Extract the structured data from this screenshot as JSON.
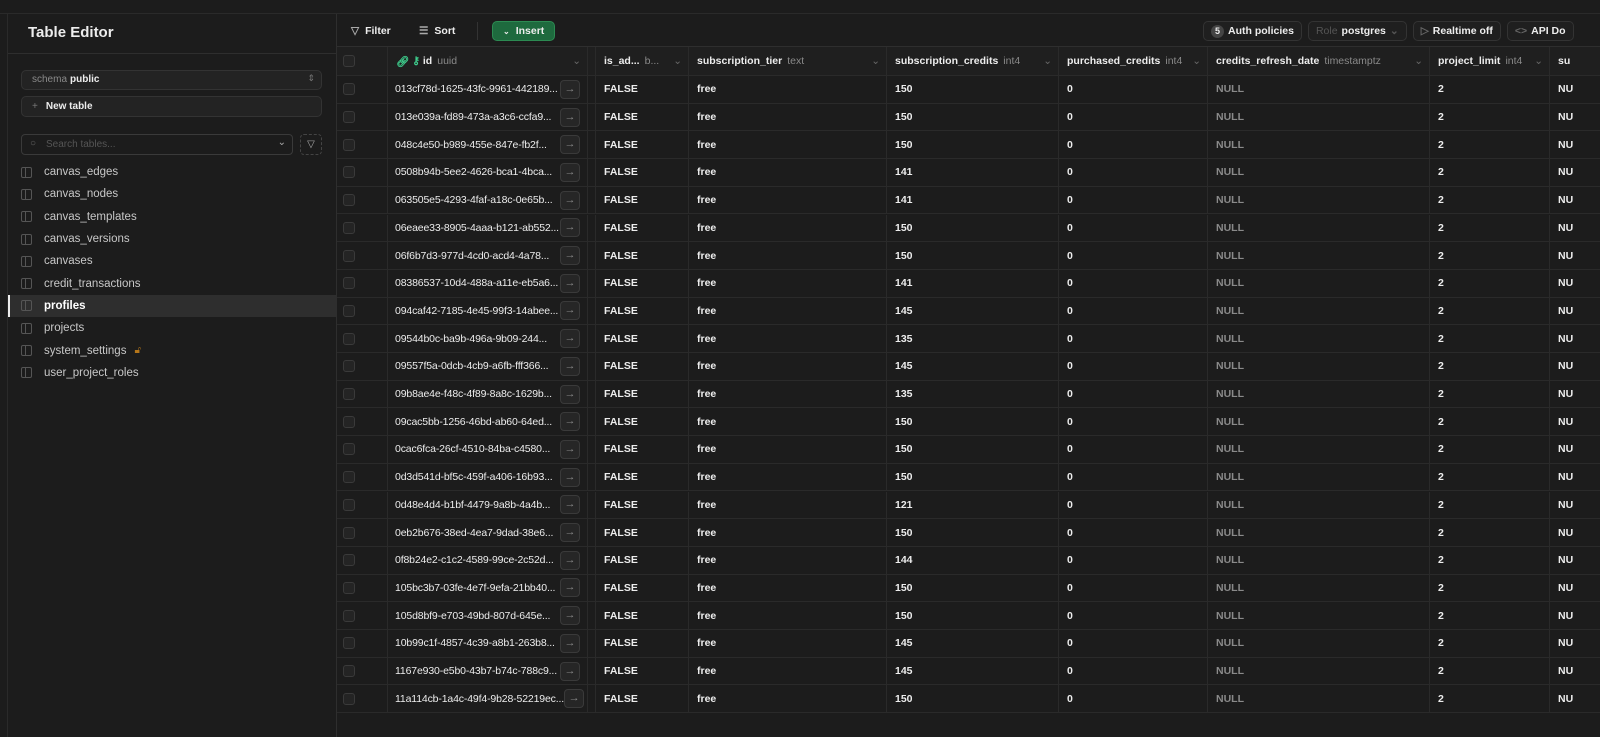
{
  "sidebar": {
    "title": "Table Editor",
    "schema_label": "schema",
    "schema_value": "public",
    "new_table": "New table",
    "search_placeholder": "Search tables...",
    "tables": [
      {
        "name": "canvas_edges"
      },
      {
        "name": "canvas_nodes"
      },
      {
        "name": "canvas_templates"
      },
      {
        "name": "canvas_versions"
      },
      {
        "name": "canvases"
      },
      {
        "name": "credit_transactions"
      },
      {
        "name": "profiles",
        "active": true
      },
      {
        "name": "projects"
      },
      {
        "name": "system_settings",
        "locked": true
      },
      {
        "name": "user_project_roles"
      }
    ]
  },
  "toolbar": {
    "filter": "Filter",
    "sort": "Sort",
    "insert": "Insert",
    "auth_count": "5",
    "auth_policies": "Auth policies",
    "role_label": "Role",
    "role_value": "postgres",
    "realtime": "Realtime off",
    "api_docs": "API Do"
  },
  "columns": [
    {
      "name": "id",
      "type": "uuid"
    },
    {
      "name": "is_ad...",
      "type": "b..."
    },
    {
      "name": "subscription_tier",
      "type": "text"
    },
    {
      "name": "subscription_credits",
      "type": "int4"
    },
    {
      "name": "purchased_credits",
      "type": "int4"
    },
    {
      "name": "credits_refresh_date",
      "type": "timestamptz"
    },
    {
      "name": "project_limit",
      "type": "int4"
    },
    {
      "name": "su",
      "type": ""
    }
  ],
  "rows": [
    [
      "013cf78d-1625-43fc-9961-442189...",
      "FALSE",
      "free",
      "150",
      "0",
      "NULL",
      "2",
      "NU"
    ],
    [
      "013e039a-fd89-473a-a3c6-ccfa9...",
      "FALSE",
      "free",
      "150",
      "0",
      "NULL",
      "2",
      "NU"
    ],
    [
      "048c4e50-b989-455e-847e-fb2f...",
      "FALSE",
      "free",
      "150",
      "0",
      "NULL",
      "2",
      "NU"
    ],
    [
      "0508b94b-5ee2-4626-bca1-4bca...",
      "FALSE",
      "free",
      "141",
      "0",
      "NULL",
      "2",
      "NU"
    ],
    [
      "063505e5-4293-4faf-a18c-0e65b...",
      "FALSE",
      "free",
      "141",
      "0",
      "NULL",
      "2",
      "NU"
    ],
    [
      "06eaee33-8905-4aaa-b121-ab552...",
      "FALSE",
      "free",
      "150",
      "0",
      "NULL",
      "2",
      "NU"
    ],
    [
      "06f6b7d3-977d-4cd0-acd4-4a78...",
      "FALSE",
      "free",
      "150",
      "0",
      "NULL",
      "2",
      "NU"
    ],
    [
      "08386537-10d4-488a-a11e-eb5a6...",
      "FALSE",
      "free",
      "141",
      "0",
      "NULL",
      "2",
      "NU"
    ],
    [
      "094caf42-7185-4e45-99f3-14abee...",
      "FALSE",
      "free",
      "145",
      "0",
      "NULL",
      "2",
      "NU"
    ],
    [
      "09544b0c-ba9b-496a-9b09-244...",
      "FALSE",
      "free",
      "135",
      "0",
      "NULL",
      "2",
      "NU"
    ],
    [
      "09557f5a-0dcb-4cb9-a6fb-fff366...",
      "FALSE",
      "free",
      "145",
      "0",
      "NULL",
      "2",
      "NU"
    ],
    [
      "09b8ae4e-f48c-4f89-8a8c-1629b...",
      "FALSE",
      "free",
      "135",
      "0",
      "NULL",
      "2",
      "NU"
    ],
    [
      "09cac5bb-1256-46bd-ab60-64ed...",
      "FALSE",
      "free",
      "150",
      "0",
      "NULL",
      "2",
      "NU"
    ],
    [
      "0cac6fca-26cf-4510-84ba-c4580...",
      "FALSE",
      "free",
      "150",
      "0",
      "NULL",
      "2",
      "NU"
    ],
    [
      "0d3d541d-bf5c-459f-a406-16b93...",
      "FALSE",
      "free",
      "150",
      "0",
      "NULL",
      "2",
      "NU"
    ],
    [
      "0d48e4d4-b1bf-4479-9a8b-4a4b...",
      "FALSE",
      "free",
      "121",
      "0",
      "NULL",
      "2",
      "NU"
    ],
    [
      "0eb2b676-38ed-4ea7-9dad-38e6...",
      "FALSE",
      "free",
      "150",
      "0",
      "NULL",
      "2",
      "NU"
    ],
    [
      "0f8b24e2-c1c2-4589-99ce-2c52d...",
      "FALSE",
      "free",
      "144",
      "0",
      "NULL",
      "2",
      "NU"
    ],
    [
      "105bc3b7-03fe-4e7f-9efa-21bb40...",
      "FALSE",
      "free",
      "150",
      "0",
      "NULL",
      "2",
      "NU"
    ],
    [
      "105d8bf9-e703-49bd-807d-645e...",
      "FALSE",
      "free",
      "150",
      "0",
      "NULL",
      "2",
      "NU"
    ],
    [
      "10b99c1f-4857-4c39-a8b1-263b8...",
      "FALSE",
      "free",
      "145",
      "0",
      "NULL",
      "2",
      "NU"
    ],
    [
      "1167e930-e5b0-43b7-b74c-788c9...",
      "FALSE",
      "free",
      "145",
      "0",
      "NULL",
      "2",
      "NU"
    ],
    [
      "11a114cb-1a4c-49f4-9b28-52219ec...",
      "FALSE",
      "free",
      "150",
      "0",
      "NULL",
      "2",
      "NU"
    ]
  ]
}
